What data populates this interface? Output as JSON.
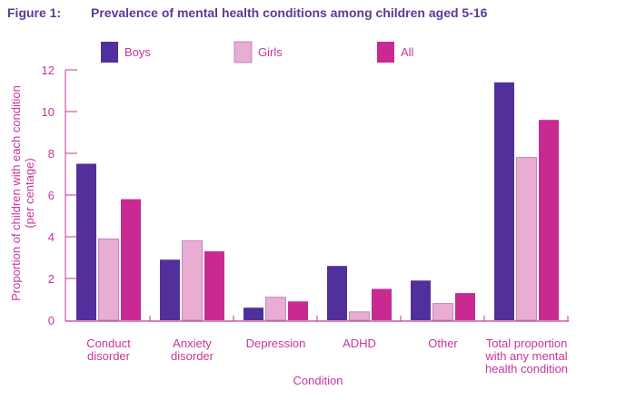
{
  "figure": {
    "number": "Figure 1:",
    "title": "Prevalence of mental health conditions among children aged 5-16"
  },
  "colors": {
    "boys": "#51309b",
    "girls": "#e9acd3",
    "girls_outline": "#b575b5",
    "all": "#c92a92",
    "axis": "#c8359b",
    "title": "#5b3a96"
  },
  "chart_data": {
    "type": "bar",
    "title": "Prevalence of mental health conditions among children aged 5-16",
    "xlabel": "Condition",
    "ylabel": "Proportion of children with each condition (per centage)",
    "ylabel_lines": [
      "Proportion of children with each condition",
      "(per centage)"
    ],
    "ylim": [
      0,
      12
    ],
    "yticks": [
      0,
      2,
      4,
      6,
      8,
      10,
      12
    ],
    "grid": false,
    "legend_position": "top",
    "categories": [
      [
        "Conduct",
        "disorder"
      ],
      [
        "Anxiety",
        "disorder"
      ],
      [
        "Depression"
      ],
      [
        "ADHD"
      ],
      [
        "Other"
      ],
      [
        "Total proportion",
        "with any mental",
        "health condition"
      ]
    ],
    "series": [
      {
        "name": "Boys",
        "key": "boys",
        "values": [
          7.5,
          2.9,
          0.6,
          2.6,
          1.9,
          11.4
        ]
      },
      {
        "name": "Girls",
        "key": "girls",
        "values": [
          3.9,
          3.8,
          1.1,
          0.4,
          0.8,
          7.8
        ]
      },
      {
        "name": "All",
        "key": "all",
        "values": [
          5.8,
          3.3,
          0.9,
          1.5,
          1.3,
          9.6
        ]
      }
    ]
  }
}
